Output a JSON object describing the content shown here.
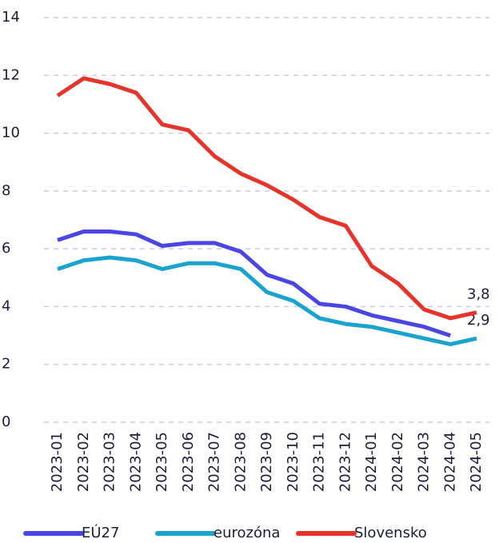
{
  "chart_data": {
    "type": "line",
    "categories": [
      "2023-01",
      "2023-02",
      "2023-03",
      "2023-04",
      "2023-05",
      "2023-06",
      "2023-07",
      "2023-08",
      "2023-09",
      "2023-10",
      "2023-11",
      "2023-12",
      "2024-01",
      "2024-02",
      "2024-03",
      "2024-04",
      "2024-05"
    ],
    "series": [
      {
        "name": "EÚ27",
        "color": "#4a46e6",
        "values": [
          6.3,
          6.6,
          6.6,
          6.5,
          6.1,
          6.2,
          6.2,
          5.9,
          5.1,
          4.8,
          4.1,
          4.0,
          3.7,
          3.5,
          3.3,
          3.0,
          null
        ]
      },
      {
        "name": "eurozóna",
        "color": "#1ba3d0",
        "values": [
          5.3,
          5.6,
          5.7,
          5.6,
          5.3,
          5.5,
          5.5,
          5.3,
          4.5,
          4.2,
          3.6,
          3.4,
          3.3,
          3.1,
          2.9,
          2.7,
          2.9
        ],
        "value_labels": [
          null,
          null,
          null,
          null,
          null,
          null,
          null,
          null,
          null,
          null,
          null,
          null,
          null,
          null,
          null,
          null,
          "2,9"
        ]
      },
      {
        "name": "Slovensko",
        "color": "#e8332a",
        "values": [
          11.3,
          11.9,
          11.7,
          11.4,
          10.3,
          10.1,
          9.2,
          8.6,
          8.2,
          7.7,
          7.1,
          6.8,
          5.4,
          4.8,
          3.9,
          3.6,
          3.8
        ],
        "value_labels": [
          null,
          null,
          null,
          null,
          null,
          null,
          null,
          null,
          null,
          null,
          null,
          null,
          null,
          null,
          null,
          null,
          "3,8"
        ]
      }
    ],
    "ylim": [
      0,
      14
    ],
    "yticks": [
      0,
      2,
      4,
      6,
      8,
      10,
      12,
      14
    ],
    "grid": true
  }
}
